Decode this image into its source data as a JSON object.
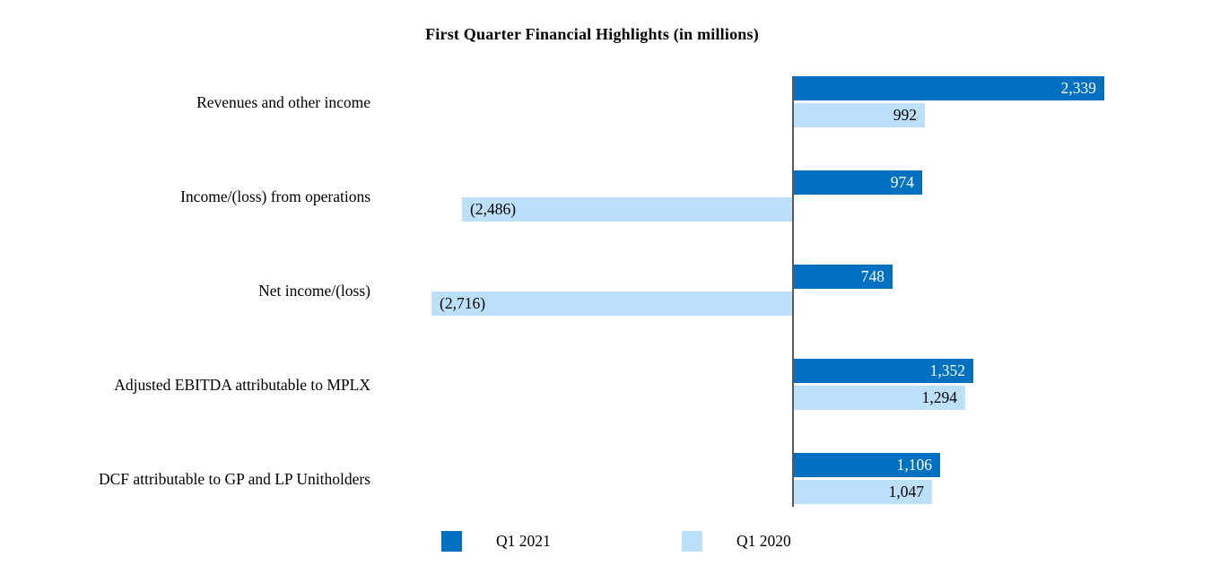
{
  "chart_data": {
    "type": "bar",
    "orientation": "horizontal",
    "title": "First Quarter Financial Highlights (in millions)",
    "categories": [
      "Revenues and other income",
      "Income/(loss) from operations",
      "Net income/(loss)",
      "Adjusted EBITDA attributable to MPLX",
      "DCF attributable to GP and LP Unitholders"
    ],
    "series": [
      {
        "name": "Q1 2021",
        "color": "#0070C0",
        "label_color": "#FFFFFF",
        "values": [
          2339,
          974,
          748,
          1352,
          1106
        ],
        "labels": [
          "2,339",
          "974",
          "748",
          "1,352",
          "1,106"
        ]
      },
      {
        "name": "Q1 2020",
        "color": "#BDE0FA",
        "label_color": "#000000",
        "values": [
          992,
          -2486,
          -2716,
          1294,
          1047
        ],
        "labels": [
          "992",
          "(2,486)",
          "(2,716)",
          "1,294",
          "1,047"
        ]
      }
    ],
    "xlim": [
      -2750,
      2450
    ],
    "axis_color": "#595959",
    "grid": false,
    "legend_position": "bottom",
    "value_labels": "inside-end"
  }
}
